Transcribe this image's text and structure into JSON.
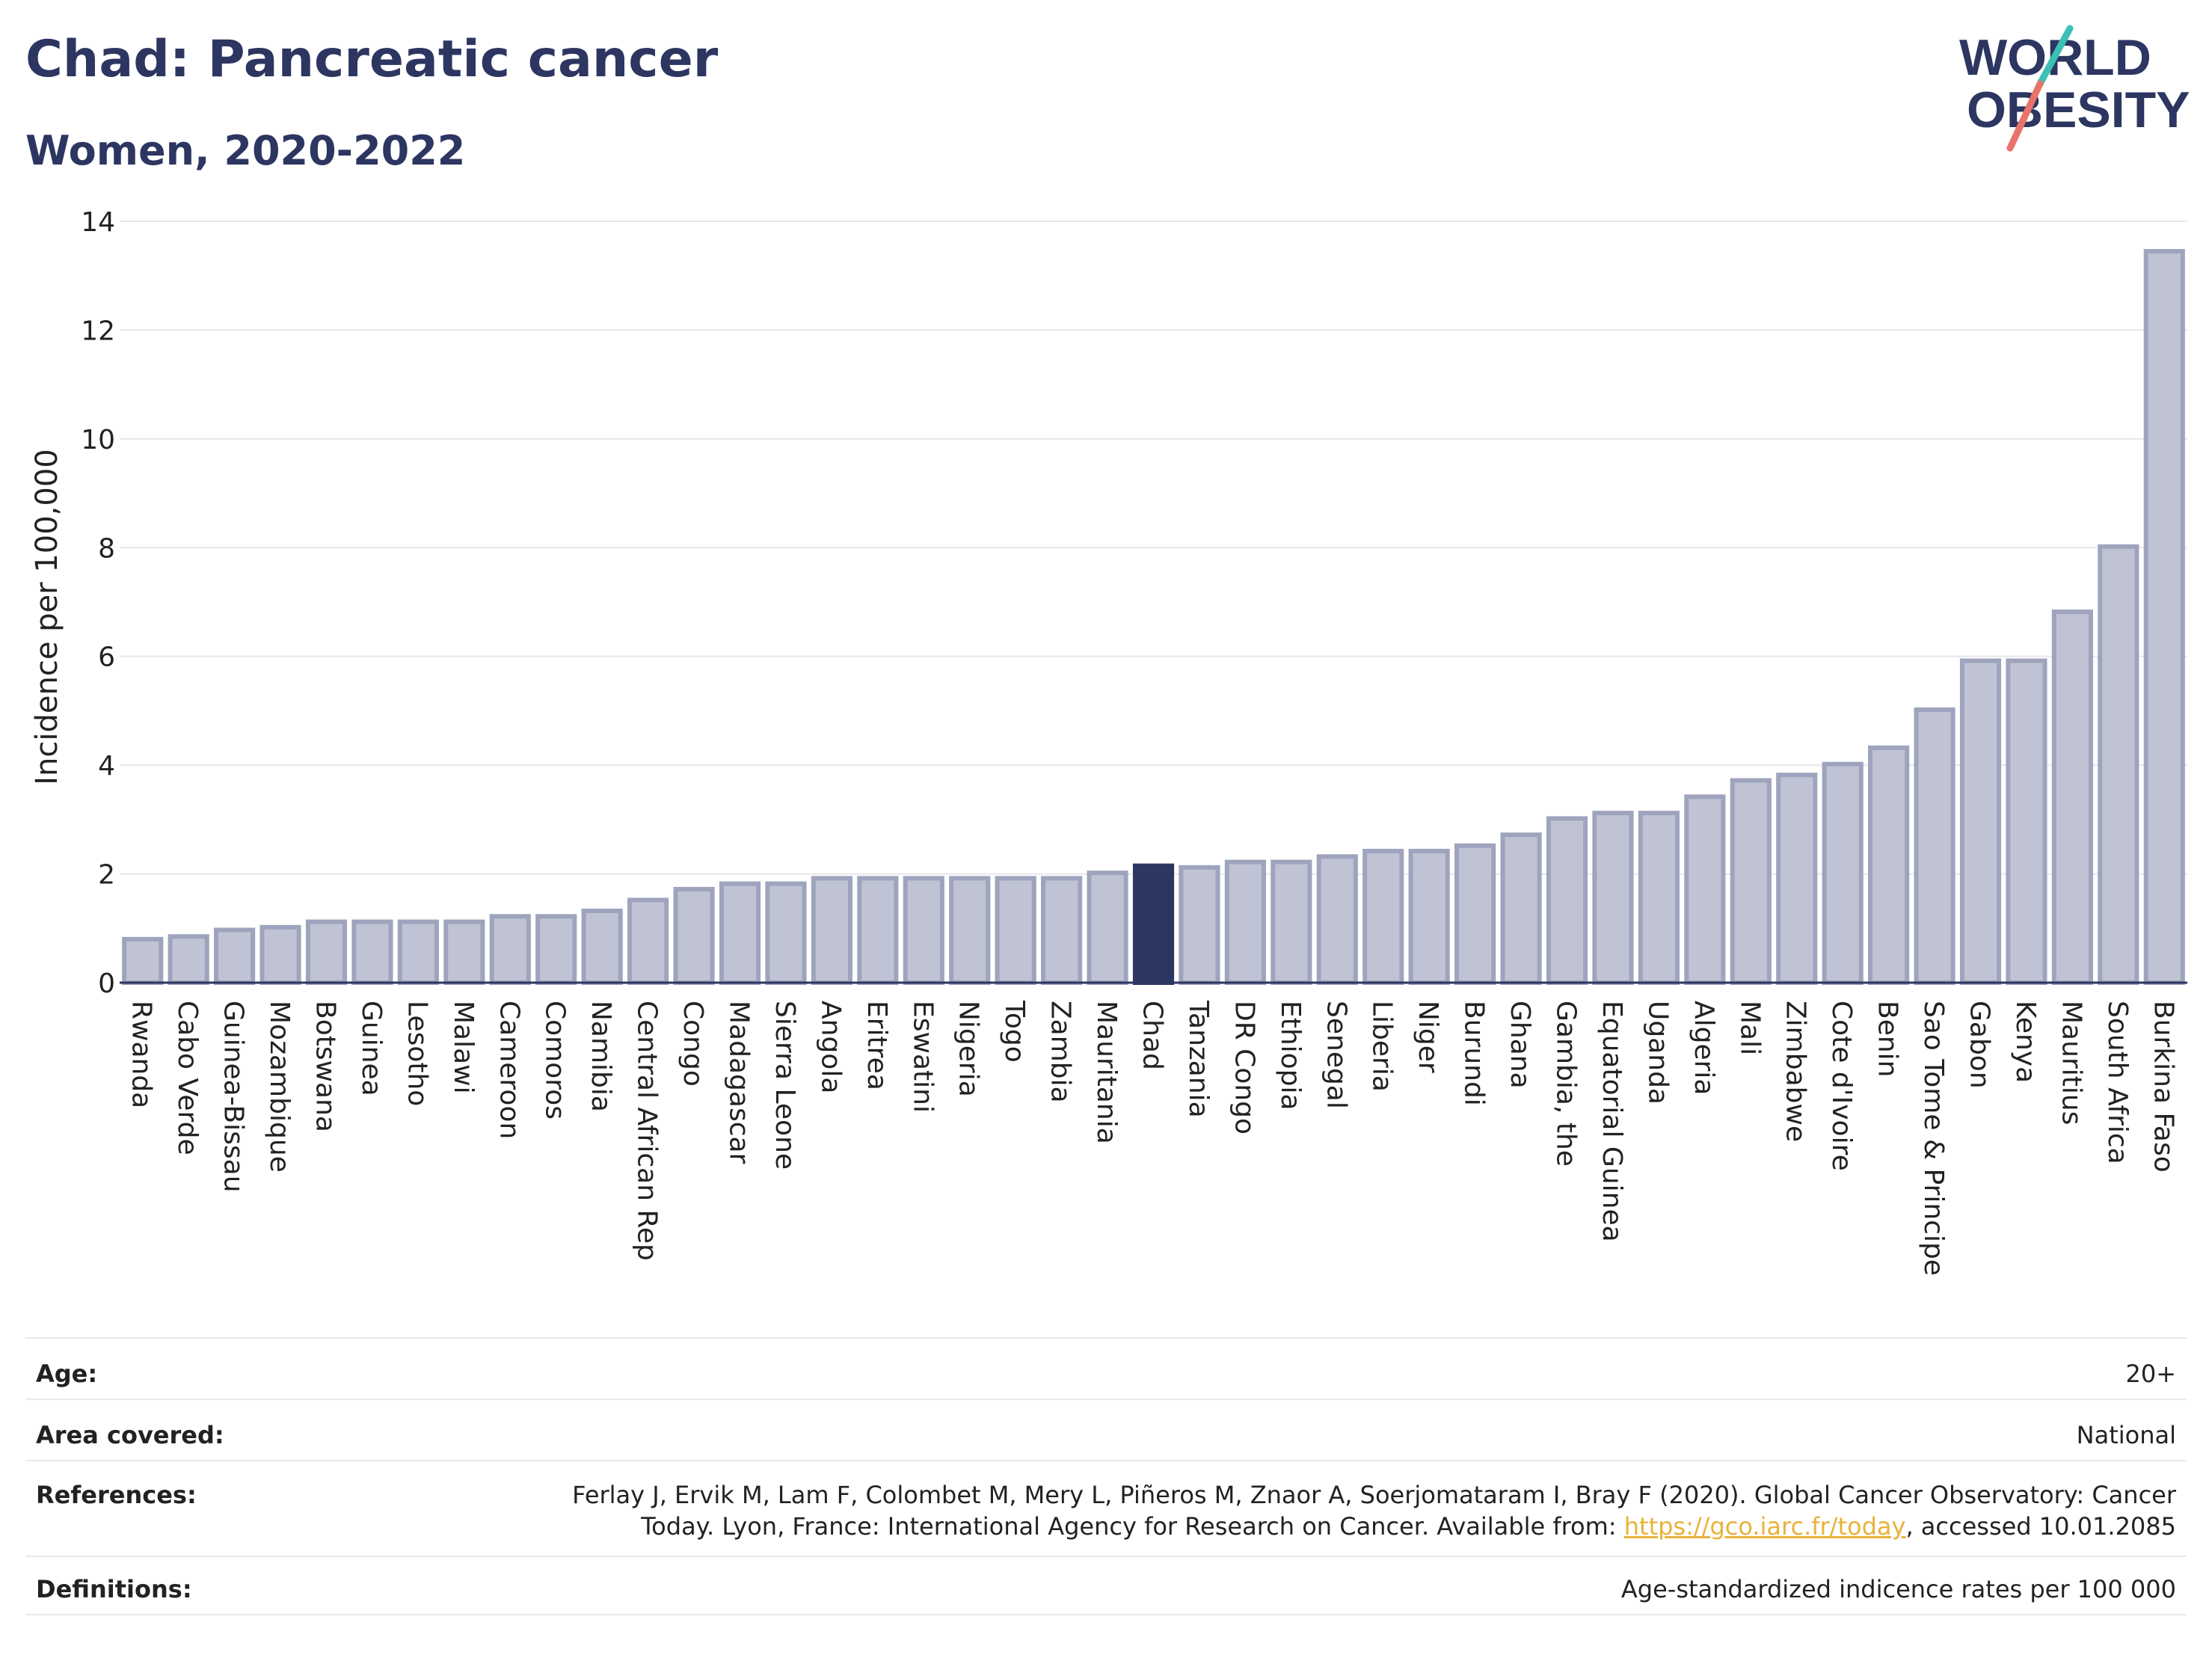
{
  "title": "Chad: Pancreatic cancer",
  "subtitle": "Women, 2020-2022",
  "logo": {
    "line1": "WORLD",
    "line2": "OBESITY"
  },
  "colors": {
    "bar": "#bfc3d3",
    "bar_stroke": "#9ea4bd",
    "highlight": "#2d3561",
    "grid": "#e6e6ee",
    "axis": "#2d3561"
  },
  "chart_data": {
    "type": "bar",
    "ylabel": "Incidence per 100,000",
    "ylim": [
      0,
      14
    ],
    "yticks": [
      0,
      2,
      4,
      6,
      8,
      10,
      12,
      14
    ],
    "highlight": "Chad",
    "categories": [
      "Rwanda",
      "Cabo Verde",
      "Guinea-Bissau",
      "Mozambique",
      "Botswana",
      "Guinea",
      "Lesotho",
      "Malawi",
      "Cameroon",
      "Comoros",
      "Namibia",
      "Central African Rep",
      "Congo",
      "Madagascar",
      "Sierra Leone",
      "Angola",
      "Eritrea",
      "Eswatini",
      "Nigeria",
      "Togo",
      "Zambia",
      "Mauritania",
      "Chad",
      "Tanzania",
      "DR Congo",
      "Ethiopia",
      "Senegal",
      "Liberia",
      "Niger",
      "Burundi",
      "Ghana",
      "Gambia, the",
      "Equatorial Guinea",
      "Uganda",
      "Algeria",
      "Mali",
      "Zimbabwe",
      "Cote d'Ivoire",
      "Benin",
      "Sao Tome & Principe",
      "Gabon",
      "Kenya",
      "Mauritius",
      "South Africa",
      "Burkina Faso"
    ],
    "values": [
      0.8,
      0.85,
      0.97,
      1.02,
      1.12,
      1.12,
      1.12,
      1.12,
      1.22,
      1.22,
      1.32,
      1.52,
      1.72,
      1.82,
      1.82,
      1.92,
      1.92,
      1.92,
      1.92,
      1.92,
      1.92,
      2.02,
      2.15,
      2.12,
      2.22,
      2.22,
      2.32,
      2.42,
      2.42,
      2.52,
      2.72,
      3.02,
      3.12,
      3.12,
      3.42,
      3.72,
      3.82,
      4.02,
      4.32,
      5.02,
      5.92,
      5.92,
      6.82,
      8.02,
      13.45
    ]
  },
  "meta": {
    "age_label": "Age:",
    "age_value": "20+",
    "area_label": "Area covered:",
    "area_value": "National",
    "refs_label": "References:",
    "refs_line1": "Ferlay J, Ervik M, Lam F, Colombet M, Mery L, Piñeros M, Znaor A, Soerjomataram I, Bray F (2020). Global Cancer Observatory: Cancer",
    "refs_line2_pre": "Today. Lyon, France: International Agency for Research on Cancer. Available from: ",
    "refs_link": "https://gco.iarc.fr/today",
    "refs_line2_post": ", accessed 10.01.2085",
    "defs_label": "Definitions:",
    "defs_value": "Age-standardized indicence rates per 100 000"
  }
}
